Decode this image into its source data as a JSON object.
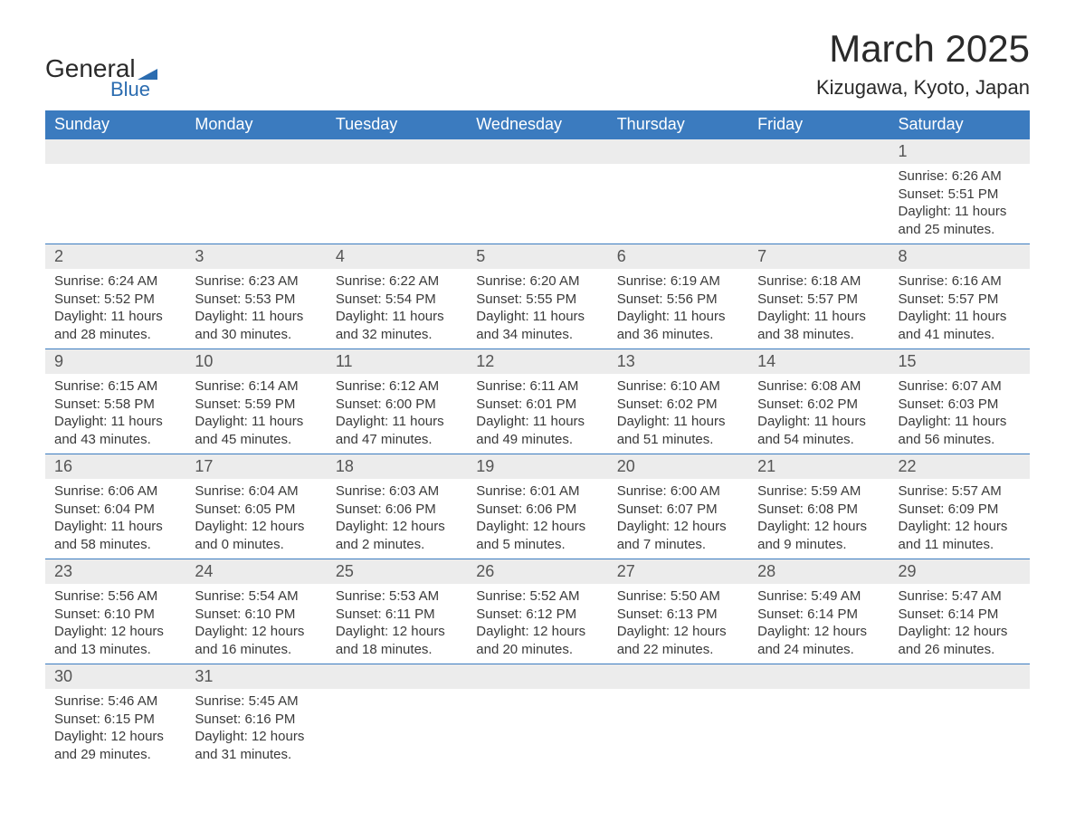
{
  "brand": {
    "name_a": "General",
    "name_b": "Blue"
  },
  "title": "March 2025",
  "location": "Kizugawa, Kyoto, Japan",
  "header_color": "#3b7bbf",
  "daynum_bg": "#ececec",
  "text_color": "#333333",
  "columns": [
    "Sunday",
    "Monday",
    "Tuesday",
    "Wednesday",
    "Thursday",
    "Friday",
    "Saturday"
  ],
  "weeks": [
    [
      null,
      null,
      null,
      null,
      null,
      null,
      {
        "n": "1",
        "sunrise": "6:26 AM",
        "sunset": "5:51 PM",
        "dl": "11 hours and 25 minutes."
      }
    ],
    [
      {
        "n": "2",
        "sunrise": "6:24 AM",
        "sunset": "5:52 PM",
        "dl": "11 hours and 28 minutes."
      },
      {
        "n": "3",
        "sunrise": "6:23 AM",
        "sunset": "5:53 PM",
        "dl": "11 hours and 30 minutes."
      },
      {
        "n": "4",
        "sunrise": "6:22 AM",
        "sunset": "5:54 PM",
        "dl": "11 hours and 32 minutes."
      },
      {
        "n": "5",
        "sunrise": "6:20 AM",
        "sunset": "5:55 PM",
        "dl": "11 hours and 34 minutes."
      },
      {
        "n": "6",
        "sunrise": "6:19 AM",
        "sunset": "5:56 PM",
        "dl": "11 hours and 36 minutes."
      },
      {
        "n": "7",
        "sunrise": "6:18 AM",
        "sunset": "5:57 PM",
        "dl": "11 hours and 38 minutes."
      },
      {
        "n": "8",
        "sunrise": "6:16 AM",
        "sunset": "5:57 PM",
        "dl": "11 hours and 41 minutes."
      }
    ],
    [
      {
        "n": "9",
        "sunrise": "6:15 AM",
        "sunset": "5:58 PM",
        "dl": "11 hours and 43 minutes."
      },
      {
        "n": "10",
        "sunrise": "6:14 AM",
        "sunset": "5:59 PM",
        "dl": "11 hours and 45 minutes."
      },
      {
        "n": "11",
        "sunrise": "6:12 AM",
        "sunset": "6:00 PM",
        "dl": "11 hours and 47 minutes."
      },
      {
        "n": "12",
        "sunrise": "6:11 AM",
        "sunset": "6:01 PM",
        "dl": "11 hours and 49 minutes."
      },
      {
        "n": "13",
        "sunrise": "6:10 AM",
        "sunset": "6:02 PM",
        "dl": "11 hours and 51 minutes."
      },
      {
        "n": "14",
        "sunrise": "6:08 AM",
        "sunset": "6:02 PM",
        "dl": "11 hours and 54 minutes."
      },
      {
        "n": "15",
        "sunrise": "6:07 AM",
        "sunset": "6:03 PM",
        "dl": "11 hours and 56 minutes."
      }
    ],
    [
      {
        "n": "16",
        "sunrise": "6:06 AM",
        "sunset": "6:04 PM",
        "dl": "11 hours and 58 minutes."
      },
      {
        "n": "17",
        "sunrise": "6:04 AM",
        "sunset": "6:05 PM",
        "dl": "12 hours and 0 minutes."
      },
      {
        "n": "18",
        "sunrise": "6:03 AM",
        "sunset": "6:06 PM",
        "dl": "12 hours and 2 minutes."
      },
      {
        "n": "19",
        "sunrise": "6:01 AM",
        "sunset": "6:06 PM",
        "dl": "12 hours and 5 minutes."
      },
      {
        "n": "20",
        "sunrise": "6:00 AM",
        "sunset": "6:07 PM",
        "dl": "12 hours and 7 minutes."
      },
      {
        "n": "21",
        "sunrise": "5:59 AM",
        "sunset": "6:08 PM",
        "dl": "12 hours and 9 minutes."
      },
      {
        "n": "22",
        "sunrise": "5:57 AM",
        "sunset": "6:09 PM",
        "dl": "12 hours and 11 minutes."
      }
    ],
    [
      {
        "n": "23",
        "sunrise": "5:56 AM",
        "sunset": "6:10 PM",
        "dl": "12 hours and 13 minutes."
      },
      {
        "n": "24",
        "sunrise": "5:54 AM",
        "sunset": "6:10 PM",
        "dl": "12 hours and 16 minutes."
      },
      {
        "n": "25",
        "sunrise": "5:53 AM",
        "sunset": "6:11 PM",
        "dl": "12 hours and 18 minutes."
      },
      {
        "n": "26",
        "sunrise": "5:52 AM",
        "sunset": "6:12 PM",
        "dl": "12 hours and 20 minutes."
      },
      {
        "n": "27",
        "sunrise": "5:50 AM",
        "sunset": "6:13 PM",
        "dl": "12 hours and 22 minutes."
      },
      {
        "n": "28",
        "sunrise": "5:49 AM",
        "sunset": "6:14 PM",
        "dl": "12 hours and 24 minutes."
      },
      {
        "n": "29",
        "sunrise": "5:47 AM",
        "sunset": "6:14 PM",
        "dl": "12 hours and 26 minutes."
      }
    ],
    [
      {
        "n": "30",
        "sunrise": "5:46 AM",
        "sunset": "6:15 PM",
        "dl": "12 hours and 29 minutes."
      },
      {
        "n": "31",
        "sunrise": "5:45 AM",
        "sunset": "6:16 PM",
        "dl": "12 hours and 31 minutes."
      },
      null,
      null,
      null,
      null,
      null
    ]
  ],
  "labels": {
    "sunrise": "Sunrise:",
    "sunset": "Sunset:",
    "daylight": "Daylight:"
  }
}
